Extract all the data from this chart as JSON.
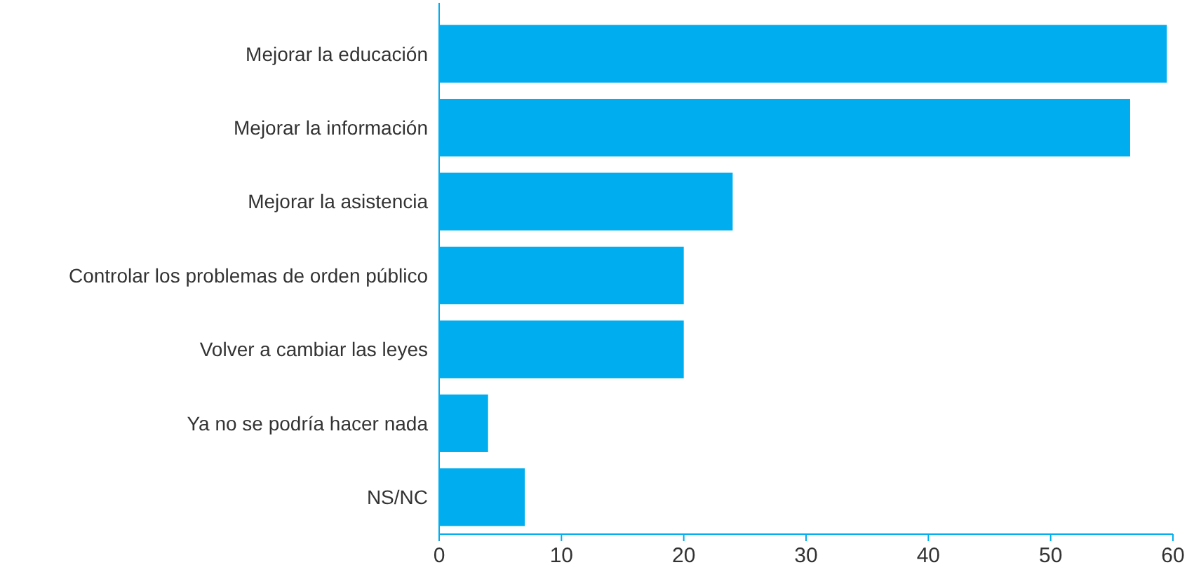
{
  "chart_data": {
    "type": "bar",
    "orientation": "horizontal",
    "categories": [
      "Mejorar la educación",
      "Mejorar la información",
      "Mejorar la asistencia",
      "Controlar los problemas de orden público",
      "Volver a cambiar las leyes",
      "Ya no se podría hacer nada",
      "NS/NC"
    ],
    "values": [
      59.5,
      56.5,
      24,
      20,
      20,
      4,
      7
    ],
    "color": "#00aeef",
    "xlim": [
      0,
      60
    ],
    "xticks": [
      0,
      10,
      20,
      30,
      40,
      50,
      60
    ],
    "grid": false
  }
}
